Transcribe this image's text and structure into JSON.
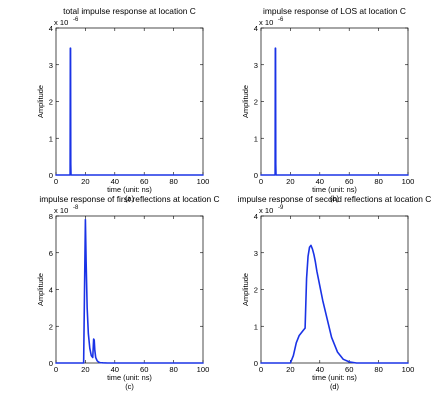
{
  "chart_data": [
    {
      "type": "line",
      "title": "total impulse response at location C",
      "xlabel": "time (unit: ns)",
      "ylabel": "Amplitude",
      "subcaption": "(a)",
      "y_exponent_label": "x 10",
      "y_exponent": "-6",
      "xlim": [
        0,
        100
      ],
      "ylim": [
        0,
        4
      ],
      "xticks": [
        "0",
        "20",
        "40",
        "60",
        "80",
        "100"
      ],
      "yticks": [
        "0",
        "1",
        "2",
        "3",
        "4"
      ],
      "series": [
        {
          "color": "#1a33e6",
          "x": [
            0,
            9.6,
            9.75,
            9.9,
            10.05,
            10.2,
            10.4,
            100
          ],
          "y": [
            0,
            0,
            3.45,
            3.45,
            0.3,
            0.02,
            0,
            0
          ]
        }
      ]
    },
    {
      "type": "line",
      "title": "impulse response of LOS at location C",
      "xlabel": "time (unit: ns)",
      "ylabel": "Amplitude",
      "subcaption": "(b)",
      "y_exponent_label": "x 10",
      "y_exponent": "-6",
      "xlim": [
        0,
        100
      ],
      "ylim": [
        0,
        4
      ],
      "xticks": [
        "0",
        "20",
        "40",
        "60",
        "80",
        "100"
      ],
      "yticks": [
        "0",
        "1",
        "2",
        "3",
        "4"
      ],
      "series": [
        {
          "color": "#1a33e6",
          "x": [
            0,
            9.6,
            9.75,
            9.9,
            10.05,
            10.2,
            10.4,
            100
          ],
          "y": [
            0,
            0,
            3.45,
            3.45,
            0.3,
            0.02,
            0,
            0
          ]
        }
      ]
    },
    {
      "type": "line",
      "title": "impulse response of first reflections at location C",
      "xlabel": "time (unit: ns)",
      "ylabel": "Amplitude",
      "subcaption": "(c)",
      "y_exponent_label": "x 10",
      "y_exponent": "-8",
      "xlim": [
        0,
        100
      ],
      "ylim": [
        0,
        8
      ],
      "xticks": [
        "0",
        "20",
        "40",
        "60",
        "80",
        "100"
      ],
      "yticks": [
        "0",
        "2",
        "4",
        "6",
        "8"
      ],
      "series": [
        {
          "color": "#1a33e6",
          "x": [
            0,
            18.8,
            19.4,
            20.0,
            20.5,
            21.2,
            22.0,
            23.0,
            24.0,
            25.0,
            25.6,
            26.0,
            26.4,
            27.0,
            28.0,
            29.0,
            30.0,
            32.0,
            35.0,
            100
          ],
          "y": [
            0,
            0,
            4.0,
            7.8,
            5.5,
            3.0,
            1.6,
            0.8,
            0.4,
            0.3,
            1.3,
            1.25,
            0.7,
            0.3,
            0.12,
            0.05,
            0.02,
            0.01,
            0,
            0
          ]
        }
      ]
    },
    {
      "type": "line",
      "title": "impulse response of second reflections at location C",
      "xlabel": "time (unit: ns)",
      "ylabel": "Amplitude",
      "subcaption": "(d)",
      "y_exponent_label": "x 10",
      "y_exponent": "-9",
      "xlim": [
        0,
        100
      ],
      "ylim": [
        0,
        4
      ],
      "xticks": [
        "0",
        "20",
        "40",
        "60",
        "80",
        "100"
      ],
      "yticks": [
        "0",
        "1",
        "2",
        "3",
        "4"
      ],
      "series": [
        {
          "color": "#1a33e6",
          "x": [
            0,
            20.0,
            22.0,
            24.0,
            26.0,
            28.0,
            29.0,
            30.0,
            31.0,
            32.0,
            33.0,
            34.0,
            35.0,
            36.0,
            37.0,
            38.0,
            40.0,
            42.0,
            45.0,
            48.0,
            52.0,
            56.0,
            60.0,
            65.0,
            100
          ],
          "y": [
            0,
            0,
            0.2,
            0.55,
            0.75,
            0.85,
            0.9,
            0.95,
            2.3,
            2.9,
            3.15,
            3.2,
            3.1,
            2.95,
            2.75,
            2.5,
            2.1,
            1.7,
            1.2,
            0.7,
            0.3,
            0.1,
            0.03,
            0,
            0
          ]
        }
      ]
    }
  ]
}
